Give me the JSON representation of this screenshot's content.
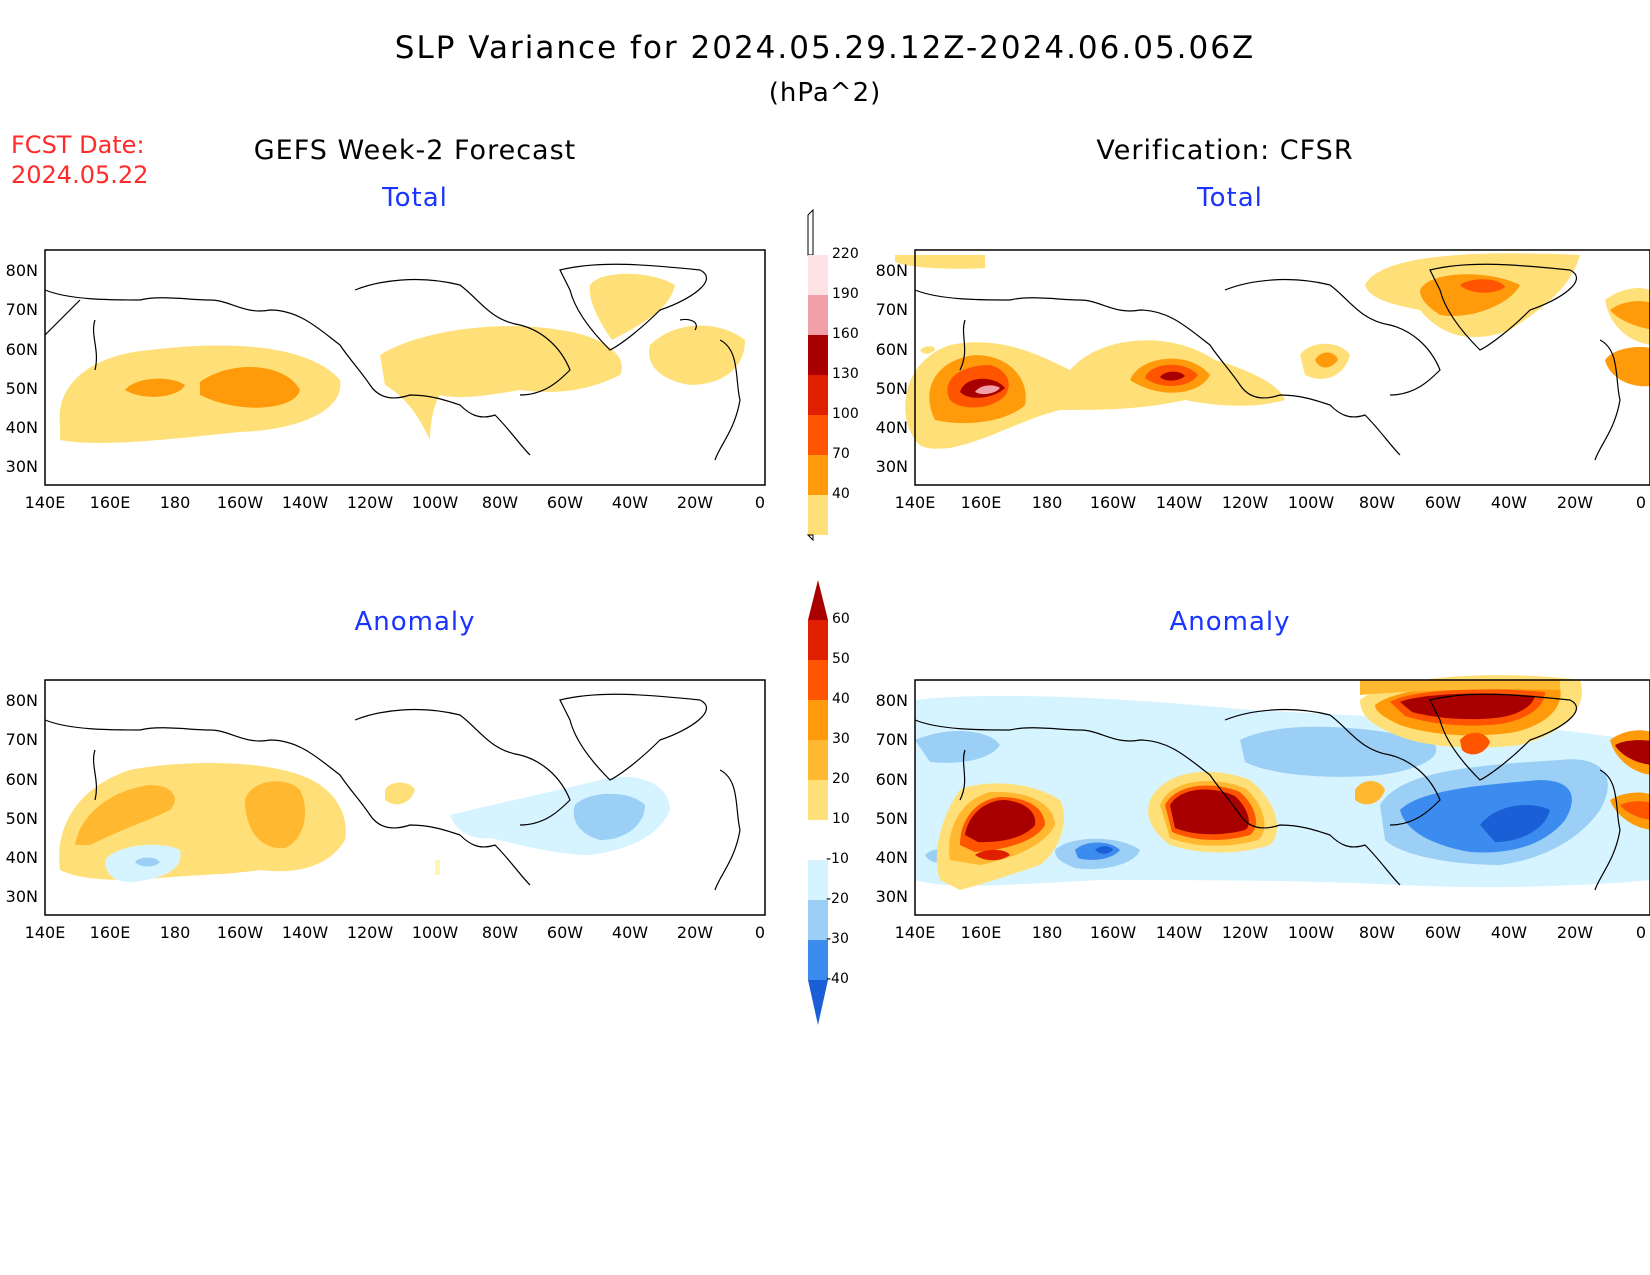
{
  "title": "SLP Variance for 2024.05.29.12Z-2024.06.05.06Z",
  "units": "(hPa^2)",
  "fcst_label": "FCST Date:",
  "fcst_date": "2024.05.22",
  "left_column_title": "GEFS Week-2 Forecast",
  "right_column_title": "Verification: CFSR",
  "panels": {
    "forecast_total": "Total",
    "verification_total": "Total",
    "forecast_anomaly": "Anomaly",
    "verification_anomaly": "Anomaly"
  },
  "axes": {
    "lon_labels": [
      "140E",
      "160E",
      "180",
      "160W",
      "140W",
      "120W",
      "100W",
      "80W",
      "60W",
      "40W",
      "20W",
      "0"
    ],
    "lat_labels": [
      "80N",
      "70N",
      "60N",
      "50N",
      "40N",
      "30N"
    ]
  },
  "total_colorbar": {
    "levels": [
      "220",
      "190",
      "160",
      "130",
      "100",
      "70",
      "40"
    ],
    "colors": [
      "#fde3e6",
      "#f2a0a8",
      "#a80000",
      "#e01e00",
      "#ff5500",
      "#ff9a0a",
      "#ffe078"
    ]
  },
  "anomaly_colorbar": {
    "levels": [
      "60",
      "50",
      "40",
      "30",
      "20",
      "10",
      "-10",
      "-20",
      "-30",
      "-40"
    ],
    "colors": [
      "#a80000",
      "#e01e00",
      "#ff5500",
      "#ff9a0a",
      "#ffb830",
      "#ffe078",
      "#fff6b0",
      "#ffffff",
      "#d6f4ff",
      "#9ccff5",
      "#3c8cf0",
      "#1a5fd6"
    ]
  }
}
